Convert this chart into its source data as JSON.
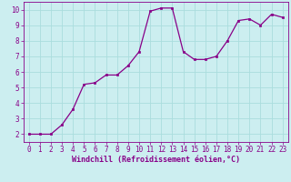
{
  "x": [
    0,
    1,
    2,
    3,
    4,
    5,
    6,
    7,
    8,
    9,
    10,
    11,
    12,
    13,
    14,
    15,
    16,
    17,
    18,
    19,
    20,
    21,
    22,
    23
  ],
  "y": [
    2.0,
    2.0,
    2.0,
    2.6,
    3.6,
    5.2,
    5.3,
    5.8,
    5.8,
    6.4,
    7.3,
    9.9,
    10.1,
    10.1,
    7.3,
    6.8,
    6.8,
    7.0,
    8.0,
    9.3,
    9.4,
    9.0,
    9.7,
    9.5
  ],
  "line_color": "#880088",
  "marker": "s",
  "marker_size": 2.0,
  "linewidth": 0.9,
  "xlabel": "Windchill (Refroidissement éolien,°C)",
  "xlabel_fontsize": 6.0,
  "xlim": [
    -0.5,
    23.5
  ],
  "ylim": [
    1.5,
    10.5
  ],
  "yticks": [
    2,
    3,
    4,
    5,
    6,
    7,
    8,
    9,
    10
  ],
  "xticks": [
    0,
    1,
    2,
    3,
    4,
    5,
    6,
    7,
    8,
    9,
    10,
    11,
    12,
    13,
    14,
    15,
    16,
    17,
    18,
    19,
    20,
    21,
    22,
    23
  ],
  "grid_color": "#aadddd",
  "background_color": "#cceef0",
  "tick_fontsize": 5.5,
  "spine_color": "#880088",
  "xlabel_color": "#880088"
}
